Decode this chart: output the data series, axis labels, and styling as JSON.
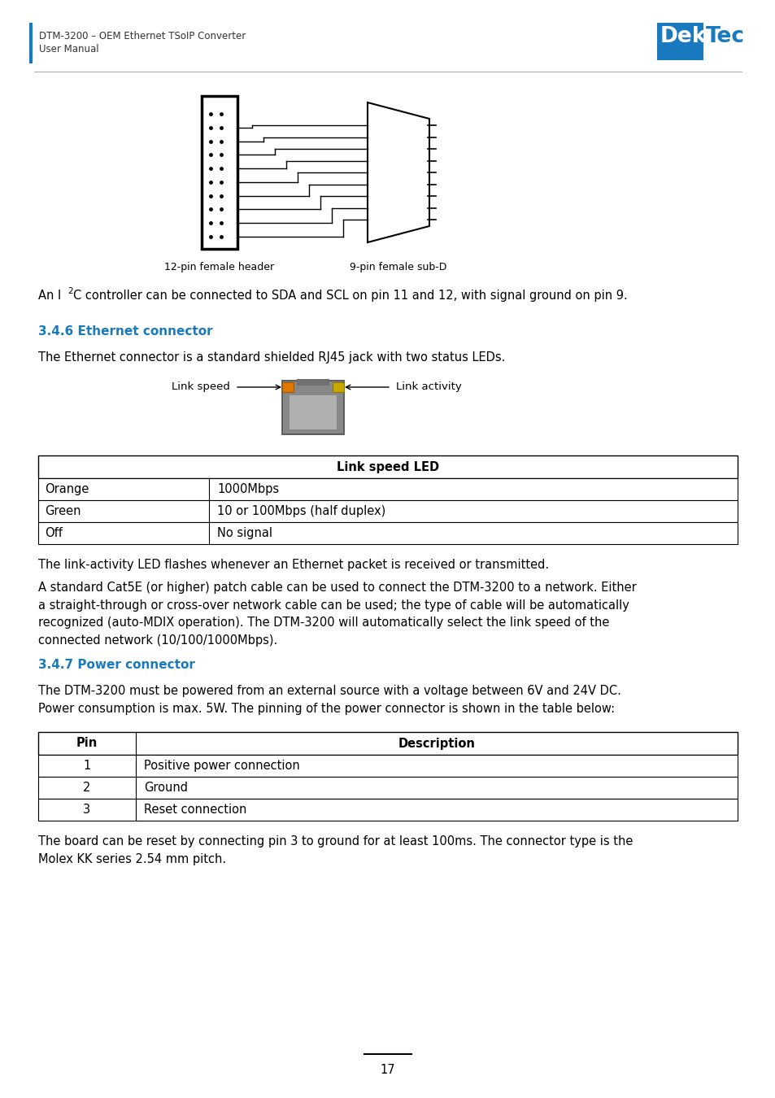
{
  "page_title_line1": "DTM-3200 – OEM Ethernet TSoIP Converter",
  "page_title_line2": "User Manual",
  "section_346_title": "3.4.6 Ethernet connector",
  "section_346_body1": "The Ethernet connector is a standard shielded RJ45 jack with two status LEDs.",
  "link_speed_label": "Link speed",
  "link_activity_label": "Link activity",
  "table1_header": "Link speed LED",
  "table1_rows": [
    [
      "Orange",
      "1000Mbps"
    ],
    [
      "Green",
      "10 or 100Mbps (half duplex)"
    ],
    [
      "Off",
      "No signal"
    ]
  ],
  "section_346_body2": "The link-activity LED flashes whenever an Ethernet packet is received or transmitted.",
  "section_346_body3": "A standard Cat5E (or higher) patch cable can be used to connect the DTM-3200 to a network. Either\na straight-through or cross-over network cable can be used; the type of cable will be automatically\nrecognized (auto-MDIX operation). The DTM-3200 will automatically select the link speed of the\nconnected network (10/100/1000Mbps).",
  "section_347_title": "3.4.7 Power connector",
  "section_347_body1": "The DTM-3200 must be powered from an external source with a voltage between 6V and 24V DC.\nPower consumption is max. 5W. The pinning of the power connector is shown in the table below:",
  "table2_header_col1": "Pin",
  "table2_header_col2": "Description",
  "table2_rows": [
    [
      "1",
      "Positive power connection"
    ],
    [
      "2",
      "Ground"
    ],
    [
      "3",
      "Reset connection"
    ]
  ],
  "section_347_body2": "The board can be reset by connecting pin 3 to ground for at least 100ms. The connector type is the\nMolex KK series 2.54 mm pitch.",
  "page_number": "17",
  "bg_color": "#ffffff",
  "text_color": "#000000",
  "header_color": "#1a7abf",
  "dektec_blue": "#1a7abf",
  "connector_gray": "#888888",
  "led_orange": "#e07800",
  "led_yellow": "#c8a800"
}
